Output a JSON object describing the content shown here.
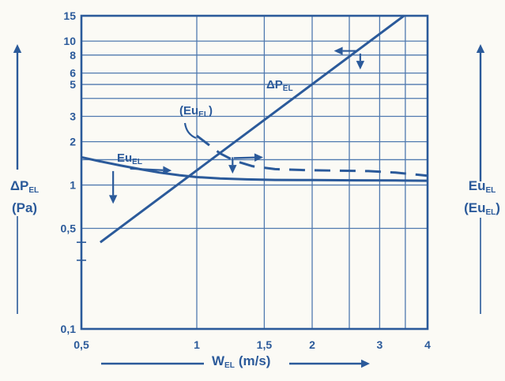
{
  "figure": {
    "ink_color": "#2b5a9a",
    "grid_color": "#4f79af",
    "background": "#fbfaf5"
  },
  "left_axis": {
    "main": "ΔP",
    "sub": "EL",
    "unit": "(Pa)"
  },
  "right_axis": {
    "main": "Eu",
    "sub": "EL",
    "paren_open": "(",
    "paren_main": "Eu",
    "paren_sub": "EL",
    "paren_close": ")"
  },
  "x_axis": {
    "main": "W",
    "sub": "EL",
    "unit": "(m/s)"
  },
  "chart_data": {
    "type": "line",
    "x_scale": "log",
    "y_scale": "log",
    "xlim": [
      0.5,
      4
    ],
    "ylim": [
      0.1,
      15
    ],
    "xlabel": "W_EL (m/s)",
    "ylabel_left": "ΔP_EL (Pa)",
    "ylabel_right": "Eu_EL (Eu_EL)",
    "grid": true,
    "x_ticks": [
      {
        "v": 0.5,
        "label": "0,5"
      },
      {
        "v": 1,
        "label": "1"
      },
      {
        "v": 1.5,
        "label": "1,5"
      },
      {
        "v": 2,
        "label": "2"
      },
      {
        "v": 2.5,
        "label": ""
      },
      {
        "v": 3,
        "label": "3"
      },
      {
        "v": 3.5,
        "label": ""
      },
      {
        "v": 4,
        "label": "4"
      }
    ],
    "y_ticks": [
      {
        "v": 15,
        "label": "15"
      },
      {
        "v": 10,
        "label": "10"
      },
      {
        "v": 8,
        "label": "8"
      },
      {
        "v": 6,
        "label": "6"
      },
      {
        "v": 5,
        "label": "5"
      },
      {
        "v": 4,
        "label": ""
      },
      {
        "v": 3,
        "label": "3"
      },
      {
        "v": 2,
        "label": "2"
      },
      {
        "v": 1.5,
        "label": ""
      },
      {
        "v": 1,
        "label": "1"
      },
      {
        "v": 0.5,
        "label": "0,5"
      },
      {
        "v": 0.1,
        "label": "0,1"
      }
    ],
    "y_minor_ticks": [
      0.4,
      0.3
    ],
    "series": [
      {
        "name": "dp-el-line",
        "display_name": "ΔP_EL",
        "style": "solid",
        "points": [
          [
            0.56,
            0.4
          ],
          [
            3.47,
            15.0
          ]
        ]
      },
      {
        "name": "eu-el-solid",
        "display_name": "Eu_EL",
        "style": "solid",
        "points": [
          [
            0.5,
            1.56
          ],
          [
            0.56,
            1.46
          ],
          [
            0.63,
            1.37
          ],
          [
            0.71,
            1.29
          ],
          [
            0.8,
            1.22
          ],
          [
            0.9,
            1.17
          ],
          [
            1.0,
            1.135
          ],
          [
            1.15,
            1.11
          ],
          [
            1.35,
            1.095
          ],
          [
            1.6,
            1.085
          ],
          [
            2.0,
            1.082
          ],
          [
            2.6,
            1.078
          ],
          [
            3.3,
            1.075
          ],
          [
            4.0,
            1.072
          ]
        ]
      },
      {
        "name": "eu-el-dashed",
        "display_name": "(Eu_EL)",
        "style": "dashed",
        "points": [
          [
            1.0,
            2.2
          ],
          [
            1.07,
            1.92
          ],
          [
            1.15,
            1.66
          ],
          [
            1.25,
            1.48
          ],
          [
            1.4,
            1.35
          ],
          [
            1.6,
            1.29
          ],
          [
            1.9,
            1.27
          ],
          [
            2.3,
            1.26
          ],
          [
            2.8,
            1.25
          ],
          [
            3.3,
            1.22
          ],
          [
            3.75,
            1.18
          ],
          [
            4.0,
            1.16
          ]
        ]
      }
    ],
    "labels": {
      "dp": {
        "main": "ΔP",
        "sub": "EL"
      },
      "eu": {
        "main": "Eu",
        "sub": "EL"
      },
      "eu_paren": {
        "open": "(",
        "main": "Eu",
        "sub": "EL",
        "close": ")"
      }
    },
    "annotation_arrows": [
      {
        "x1": 0.605,
        "y1": 1.25,
        "x2": 0.605,
        "y2": 0.74
      },
      {
        "x1": 0.67,
        "y1": 1.3,
        "x2": 0.86,
        "y2": 1.26
      },
      {
        "x1": 1.24,
        "y1": 1.56,
        "x2": 1.24,
        "y2": 1.2
      },
      {
        "x1": 1.25,
        "y1": 1.54,
        "x2": 1.49,
        "y2": 1.56
      },
      {
        "x1": 2.62,
        "y1": 8.55,
        "x2": 2.28,
        "y2": 8.55
      },
      {
        "x1": 2.67,
        "y1": 8.2,
        "x2": 2.67,
        "y2": 6.35
      }
    ],
    "legend_position": "none",
    "title": ""
  }
}
